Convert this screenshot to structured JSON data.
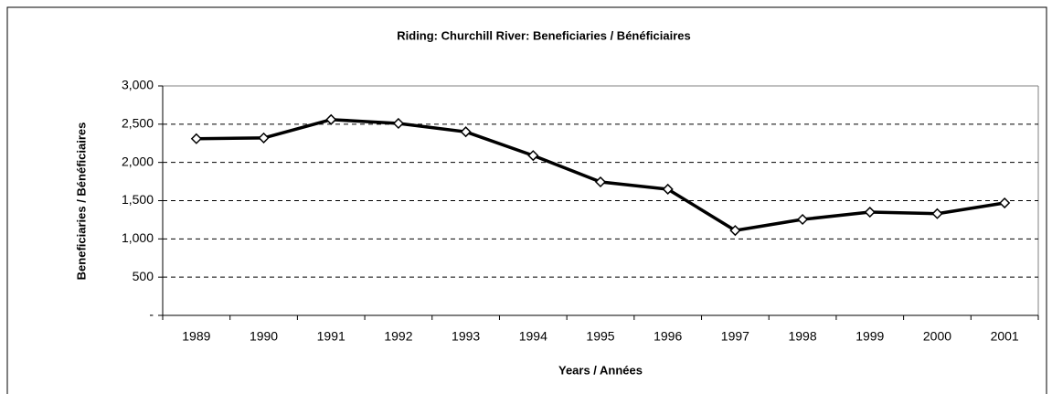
{
  "chart_data": {
    "type": "line",
    "title": "Riding:  Churchill River:  Beneficiaries / Bénéficiaires",
    "x_label": "Years / Années",
    "y_label": "Beneficiaries / Bénéficiaires",
    "categories": [
      "1989",
      "1990",
      "1991",
      "1992",
      "1993",
      "1994",
      "1995",
      "1996",
      "1997",
      "1998",
      "1999",
      "2000",
      "2001"
    ],
    "series": [
      {
        "name": "Beneficiaries / Bénéficiaires",
        "color": "#000000",
        "values": [
          2310,
          2320,
          2560,
          2510,
          2400,
          2090,
          1745,
          1650,
          1110,
          1255,
          1350,
          1330,
          1470
        ]
      }
    ],
    "ylim": [
      0,
      3000
    ],
    "yticks": [
      {
        "value": 0,
        "label": "-"
      },
      500,
      {
        "value": 1000,
        "label": "1,000"
      },
      {
        "value": 1500,
        "label": "1,500"
      },
      {
        "value": 2000,
        "label": "2,000"
      },
      {
        "value": 2500,
        "label": "2,500"
      },
      {
        "value": 3000,
        "label": "3,000"
      }
    ],
    "grid": true
  }
}
